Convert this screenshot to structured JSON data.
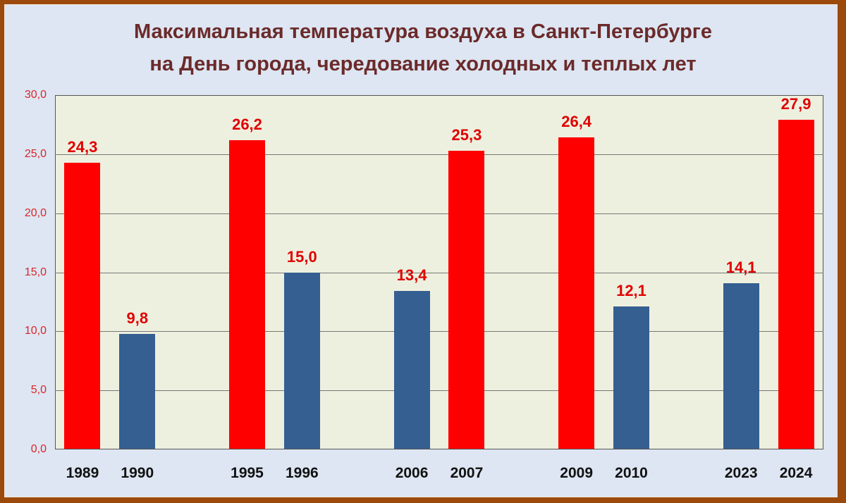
{
  "title_line1": "Максимальная температура воздуха в Санкт-Петербурге",
  "title_line2": "на День города, чередование холодных и теплых лет",
  "colors": {
    "warm": "#ff0000",
    "cold": "#355f91",
    "title": "#6b2a2a",
    "value_label": "#e00000",
    "y_tick": "#d9262a",
    "plot_bg": "#eef0df",
    "chart_bg": "#dde6f2",
    "frame": "#9c4a0c"
  },
  "y_ticks": [
    "0,0",
    "5,0",
    "10,0",
    "15,0",
    "20,0",
    "25,0",
    "30,0"
  ],
  "chart_data": {
    "type": "bar",
    "title": "Максимальная температура воздуха в Санкт-Петербурге на День города, чередование холодных и теплых лет",
    "xlabel": "",
    "ylabel": "",
    "ylim": [
      0,
      30
    ],
    "y_tick_step": 5,
    "grid": true,
    "legend": null,
    "categories": [
      "1989",
      "1990",
      "1995",
      "1996",
      "2006",
      "2007",
      "2009",
      "2010",
      "2023",
      "2024"
    ],
    "values": [
      24.3,
      9.8,
      26.2,
      15.0,
      13.4,
      25.3,
      26.4,
      12.1,
      14.1,
      27.9
    ],
    "value_labels": [
      "24,3",
      "9,8",
      "26,2",
      "15,0",
      "13,4",
      "25,3",
      "26,4",
      "12,1",
      "14,1",
      "27,9"
    ],
    "bar_type": [
      "warm",
      "cold",
      "warm",
      "cold",
      "cold",
      "warm",
      "warm",
      "cold",
      "cold",
      "warm"
    ],
    "slot_index": [
      0,
      1,
      3,
      4,
      6,
      7,
      9,
      10,
      12,
      13
    ],
    "total_slots": 14
  }
}
